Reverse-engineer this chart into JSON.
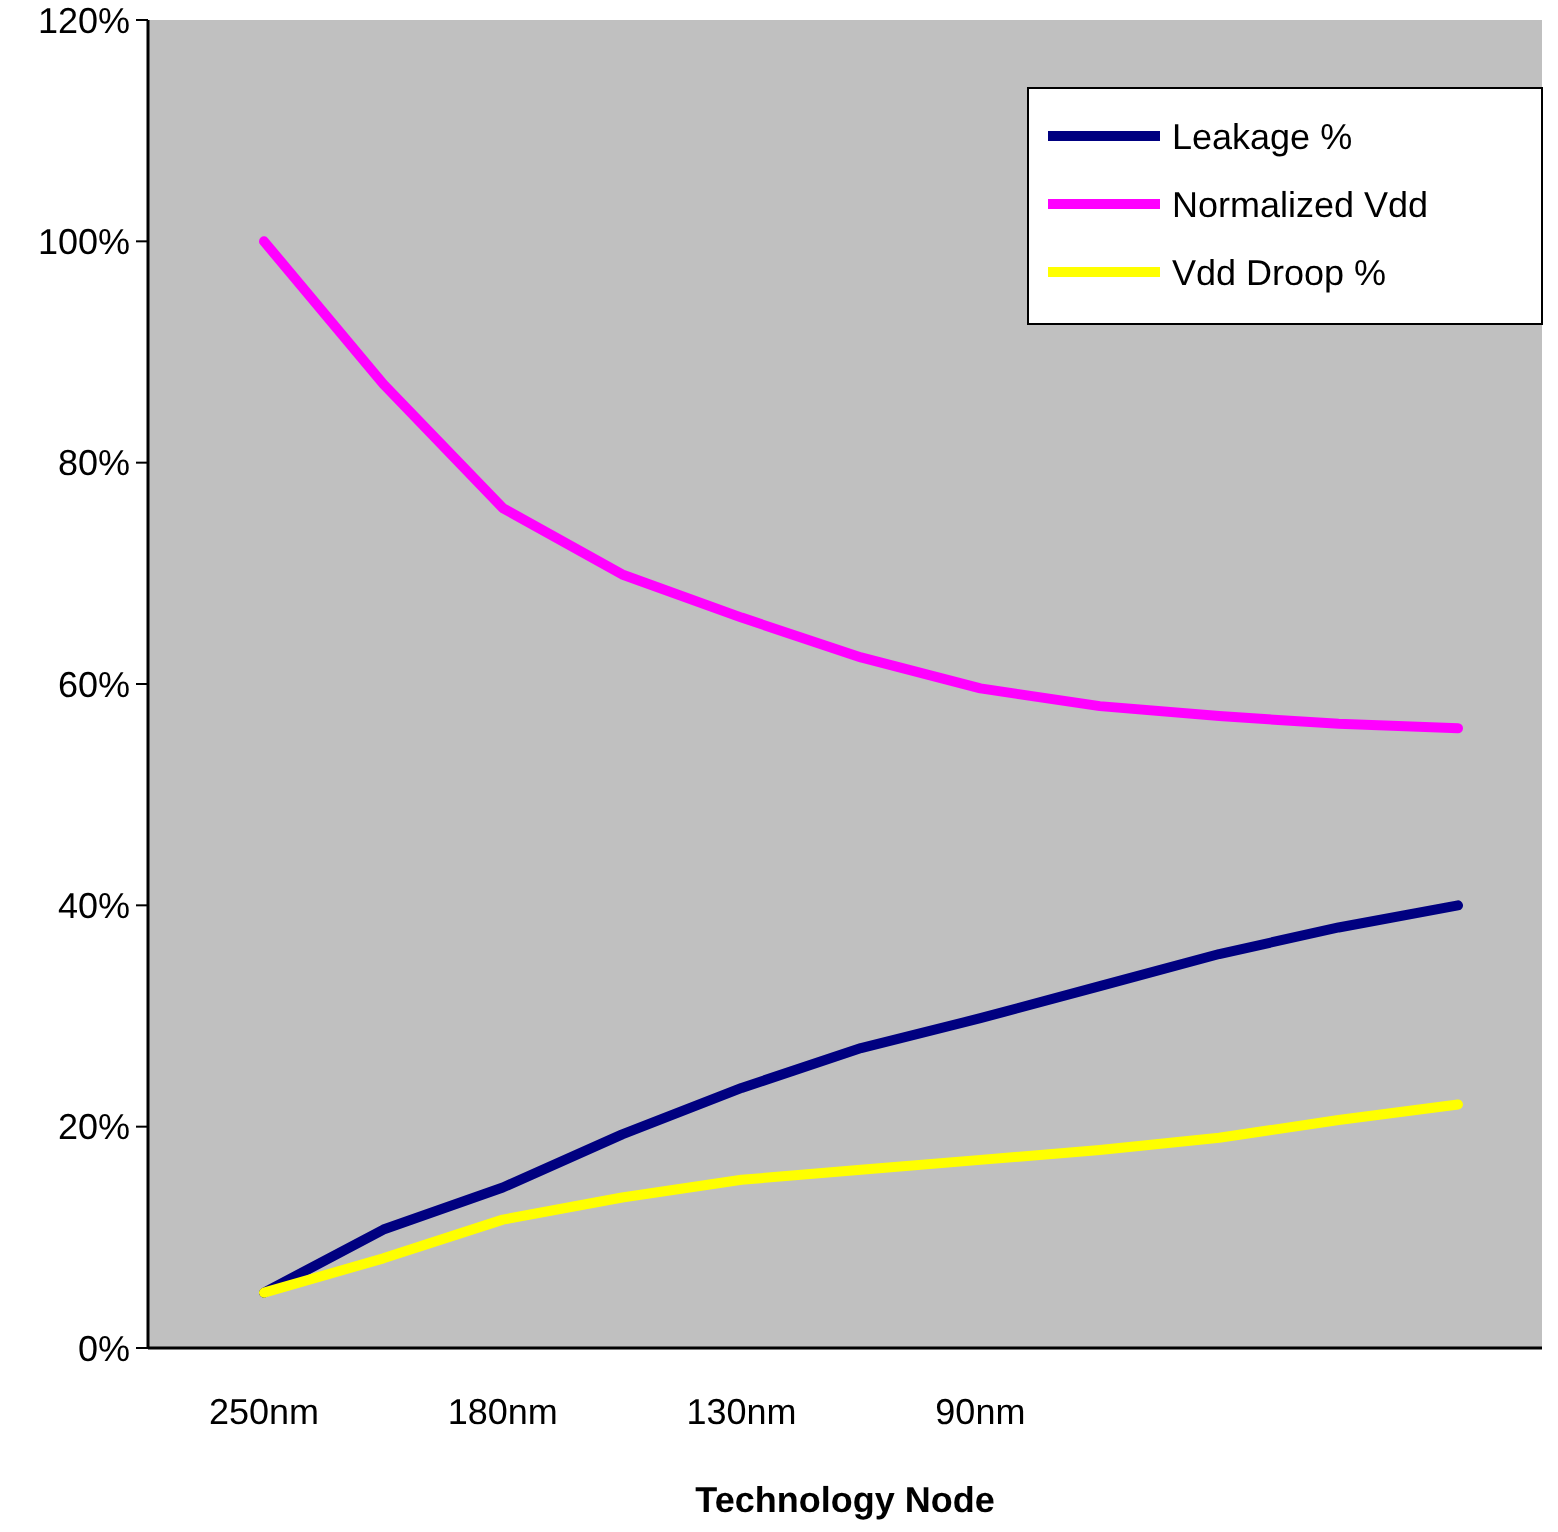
{
  "chart_data": {
    "type": "line",
    "xlabel": "Technology Node",
    "categories": [
      "250nm",
      null,
      "180nm",
      null,
      "130nm",
      null,
      "90nm",
      null,
      null,
      null,
      null
    ],
    "series": [
      {
        "name": "Leakage %",
        "color": "#000080",
        "values": [
          5,
          10.7,
          14.5,
          19.3,
          23.5,
          27.1,
          29.8,
          32.7,
          35.6,
          38,
          40
        ]
      },
      {
        "name": "Normalized Vdd",
        "color": "#ff00ff",
        "values": [
          100,
          87.1,
          75.9,
          69.9,
          66,
          62.4,
          59.6,
          58,
          57.1,
          56.4,
          56
        ]
      },
      {
        "name": "Vdd Droop %",
        "color": "#ffff00",
        "values": [
          5,
          8.1,
          11.6,
          13.6,
          15.2,
          16.1,
          17,
          17.9,
          19,
          20.6,
          22
        ]
      }
    ],
    "ylim": [
      0,
      120
    ],
    "yticks": [
      {
        "value": 0,
        "label": "0%"
      },
      {
        "value": 20,
        "label": "20%"
      },
      {
        "value": 40,
        "label": "40%"
      },
      {
        "value": 60,
        "label": "60%"
      },
      {
        "value": 80,
        "label": "80%"
      },
      {
        "value": 100,
        "label": "100%"
      },
      {
        "value": 120,
        "label": "120%"
      }
    ],
    "grid": false,
    "legend": "top right",
    "marker": "none",
    "line_style": "solid"
  }
}
